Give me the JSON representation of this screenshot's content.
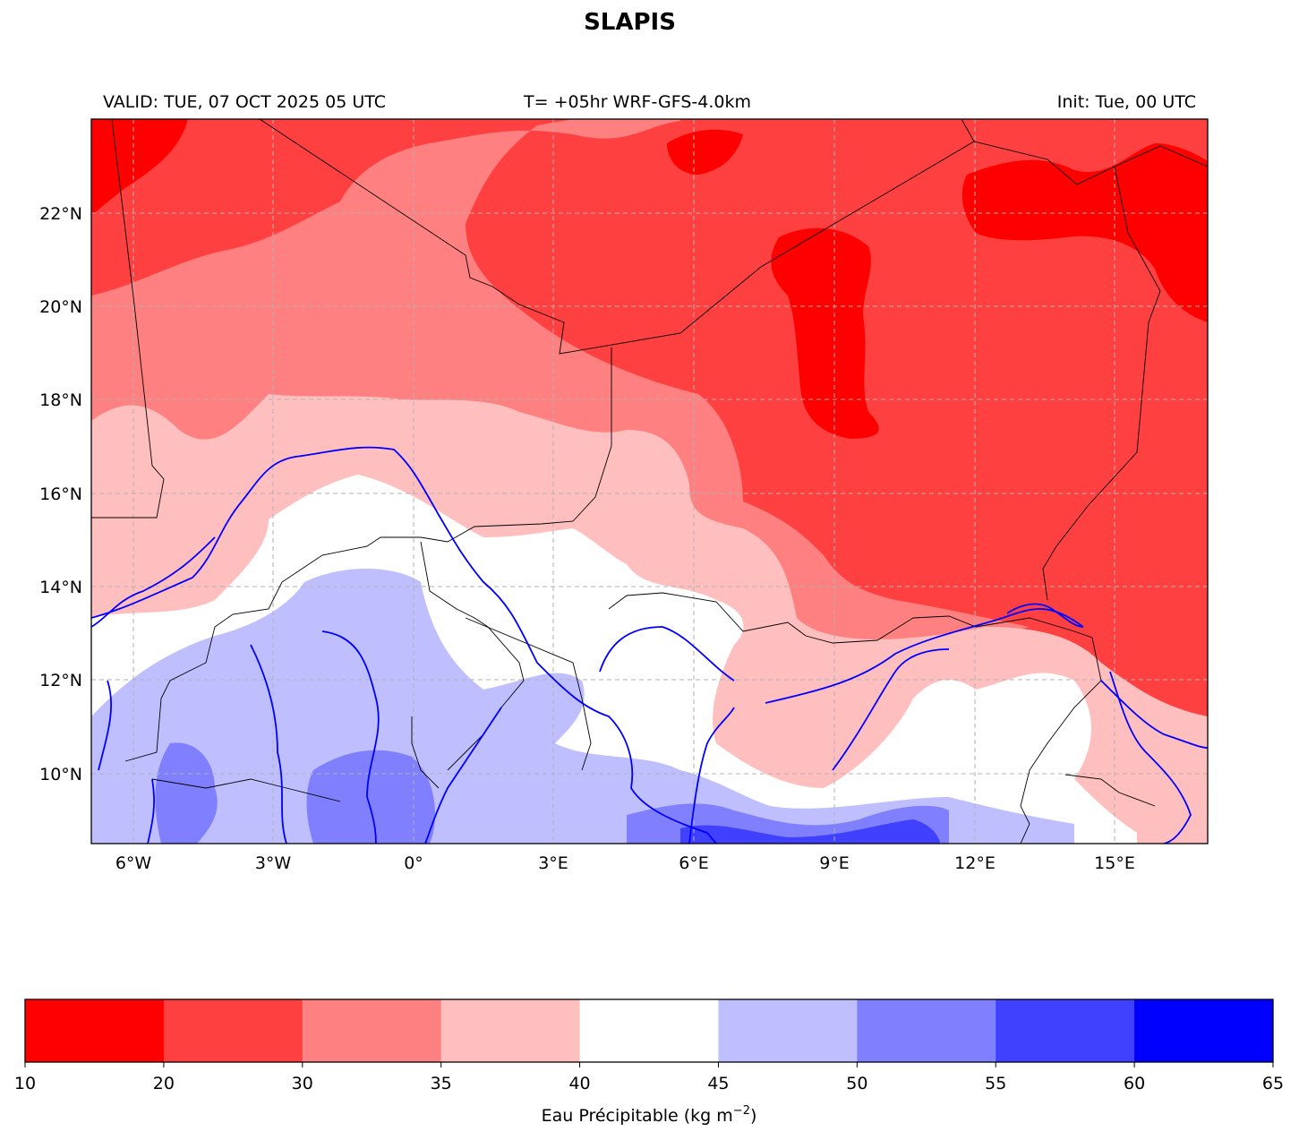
{
  "title": "SLAPIS",
  "subtitle_left": "VALID: TUE, 07 OCT 2025 05 UTC",
  "subtitle_center": "T= +05hr WRF-GFS-4.0km",
  "subtitle_right": "Init: Tue, 00 UTC",
  "map": {
    "lon_ticks": [
      "6°W",
      "3°W",
      "0°",
      "3°E",
      "6°E",
      "9°E",
      "12°E",
      "15°E"
    ],
    "lat_ticks": [
      "22°N",
      "20°N",
      "18°N",
      "16°N",
      "14°N",
      "12°N",
      "10°N"
    ],
    "grid": true,
    "colors": {
      "borders": "#000000",
      "rivers": "#0000ff",
      "grid": "#b0b0b0"
    }
  },
  "colorbar": {
    "label": "Eau Précipitable (kg m",
    "label_superscript": "−2",
    "label_close": ")",
    "boundaries": [
      "10",
      "20",
      "30",
      "35",
      "40",
      "45",
      "50",
      "55",
      "60",
      "65"
    ],
    "colors": [
      "#ff0000",
      "#ff4040",
      "#ff8080",
      "#ffbfbf",
      "#ffffff",
      "#bfbfff",
      "#8080ff",
      "#4040ff",
      "#0000ff"
    ]
  }
}
